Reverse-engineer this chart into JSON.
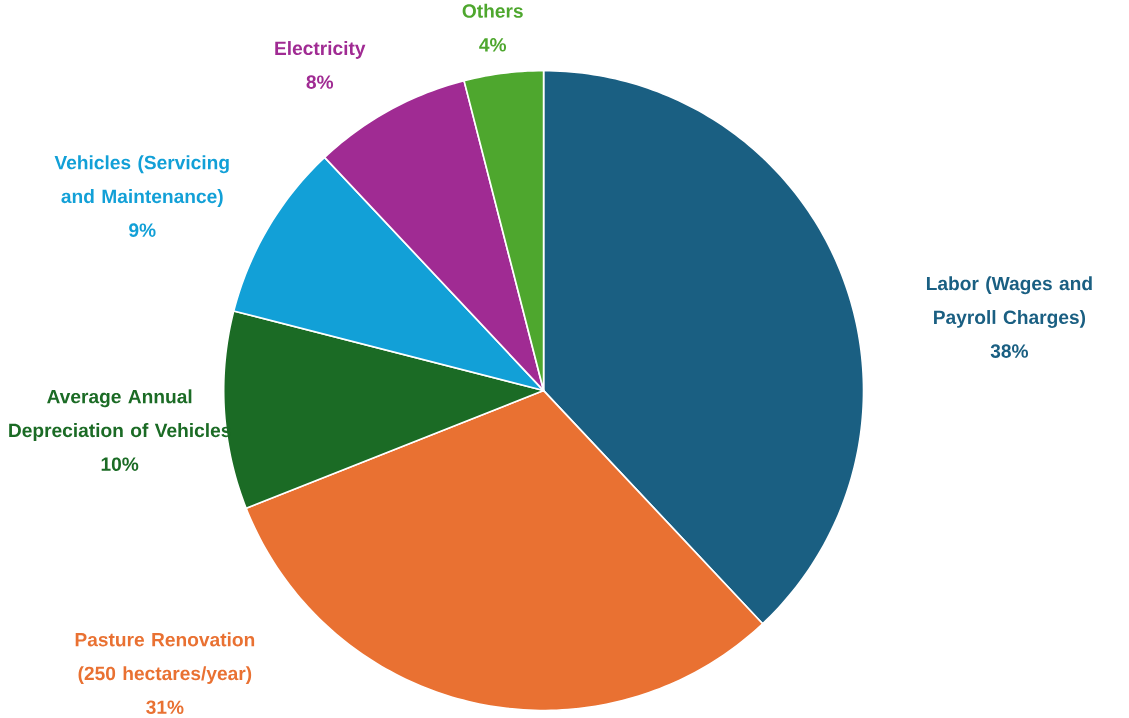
{
  "chart_data": {
    "type": "pie",
    "categories": [
      "Labor (Wages and Payroll Charges)",
      "Pasture Renovation (250 hectares/year)",
      "Average Annual Depreciation of Vehicles",
      "Vehicles (Servicing and Maintenance)",
      "Electricity",
      "Others"
    ],
    "values": [
      38,
      31,
      10,
      9,
      8,
      4
    ],
    "value_labels": [
      "38%",
      "31%",
      "10%",
      "9%",
      "8%",
      "4%"
    ],
    "colors": [
      "#1a5f82",
      "#e97132",
      "#1b6b25",
      "#12a0d7",
      "#a02b93",
      "#4ea72e"
    ]
  }
}
